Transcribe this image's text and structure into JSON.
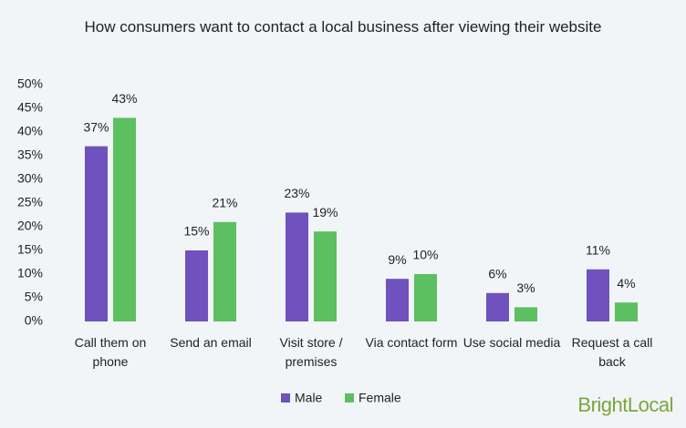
{
  "chart_data": {
    "type": "bar",
    "title": "How consumers want to contact a local business after viewing their website",
    "categories": [
      "Call them on phone",
      "Send an email",
      "Visit store / premises",
      "Via contact form",
      "Use social media",
      "Request a call back"
    ],
    "series": [
      {
        "name": "Male",
        "color": "#6f52bd",
        "values": [
          37,
          15,
          23,
          9,
          6,
          11
        ],
        "value_labels": [
          "37%",
          "15%",
          "23%",
          "9%",
          "6%",
          "11%"
        ]
      },
      {
        "name": "Female",
        "color": "#5cbf60",
        "values": [
          43,
          21,
          19,
          10,
          3,
          4
        ],
        "value_labels": [
          "43%",
          "21%",
          "19%",
          "10%",
          "3%",
          "4%"
        ]
      }
    ],
    "ylim": [
      0,
      50
    ],
    "yticks": [
      {
        "value": 0,
        "label": "0%"
      },
      {
        "value": 5,
        "label": "5%"
      },
      {
        "value": 10,
        "label": "10%"
      },
      {
        "value": 15,
        "label": "15%"
      },
      {
        "value": 20,
        "label": "20%"
      },
      {
        "value": 25,
        "label": "25%"
      },
      {
        "value": 30,
        "label": "30%"
      },
      {
        "value": 35,
        "label": "35%"
      },
      {
        "value": 40,
        "label": "40%"
      },
      {
        "value": 45,
        "label": "45%"
      },
      {
        "value": 50,
        "label": "50%"
      }
    ],
    "grid": false,
    "legend": "bottom"
  },
  "brand": "BrightLocal"
}
